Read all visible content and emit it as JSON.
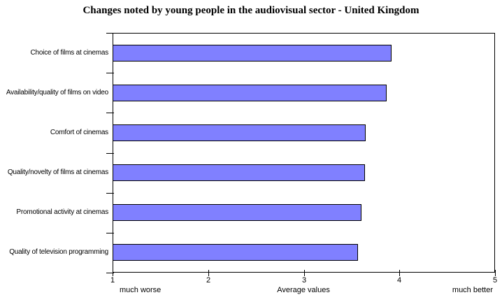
{
  "chart_data": {
    "type": "bar",
    "orientation": "horizontal",
    "title": "Changes noted by young people in the audiovisual sector - United Kingdom",
    "categories": [
      "Choice of films at cinemas",
      "Availability/quality of films on video",
      "Comfort of cinemas",
      "Quality/novelty of films at cinemas",
      "Promotional activity at cinemas",
      "Quality of television programming"
    ],
    "values": [
      3.92,
      3.87,
      3.65,
      3.64,
      3.6,
      3.57
    ],
    "xlabel": "Average values",
    "x_min_label": "much worse",
    "x_max_label": "much better",
    "xlim": [
      1,
      5
    ],
    "x_axis_ticks": [
      1,
      2,
      3,
      4,
      5
    ],
    "grid": false,
    "legend": false,
    "bar_color": "#8080FF",
    "bar_border_color": "#000000",
    "background_color": "#FFFFFF"
  }
}
